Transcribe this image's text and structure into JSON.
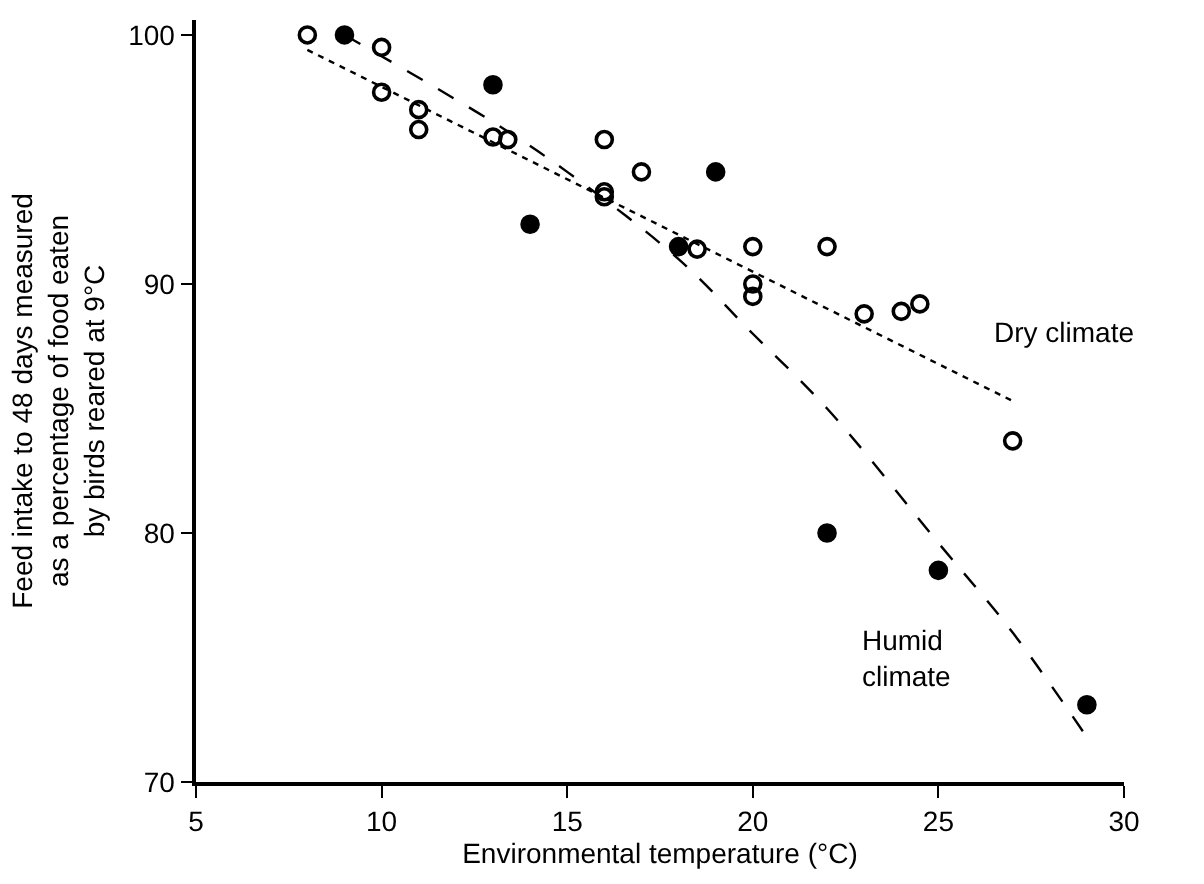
{
  "chart_data": {
    "type": "scatter",
    "xlabel": "Environmental temperature (°C)",
    "ylabel": "Feed intake to 48 days measured\nas a percentage of food eaten\nby birds reared at 9°C",
    "xlim": [
      5,
      30
    ],
    "xticks": [
      5,
      10,
      15,
      20,
      25,
      30
    ],
    "ylim": [
      70,
      100.6
    ],
    "yticks": [
      70,
      80,
      90,
      100
    ],
    "grid": false,
    "legend": false,
    "series": [
      {
        "marker": "circle-open",
        "color": "#000000",
        "x": [
          8,
          10,
          10,
          11,
          11,
          13,
          13.4,
          16,
          16,
          16,
          17,
          18.5,
          20,
          20,
          20,
          22,
          23,
          24,
          24.5,
          27
        ],
        "values": [
          100,
          99.5,
          97.7,
          97,
          96.2,
          95.9,
          95.8,
          95.8,
          93.7,
          93.5,
          94.5,
          91.4,
          91.5,
          90,
          89.5,
          91.5,
          88.8,
          88.9,
          89.2,
          83.7
        ]
      },
      {
        "marker": "circle",
        "color": "#000000",
        "x": [
          9,
          13,
          14,
          18,
          19,
          22,
          25,
          29
        ],
        "values": [
          100,
          98,
          92.4,
          91.5,
          94.5,
          80,
          78.5,
          73.1
        ]
      },
      {
        "type": "line",
        "name": "Dry climate",
        "line_style": "dotted",
        "color": "#000000",
        "x": [
          8,
          27
        ],
        "values": [
          99.4,
          85.3
        ]
      },
      {
        "type": "line",
        "name": "Humid\nclimate",
        "line_style": "dashed",
        "color": "#000000",
        "x": [
          9,
          13,
          15,
          18,
          20,
          22,
          25,
          27,
          29
        ],
        "values": [
          100,
          96.5,
          94.5,
          91,
          88,
          85,
          79.6,
          76,
          71.8
        ]
      }
    ]
  }
}
